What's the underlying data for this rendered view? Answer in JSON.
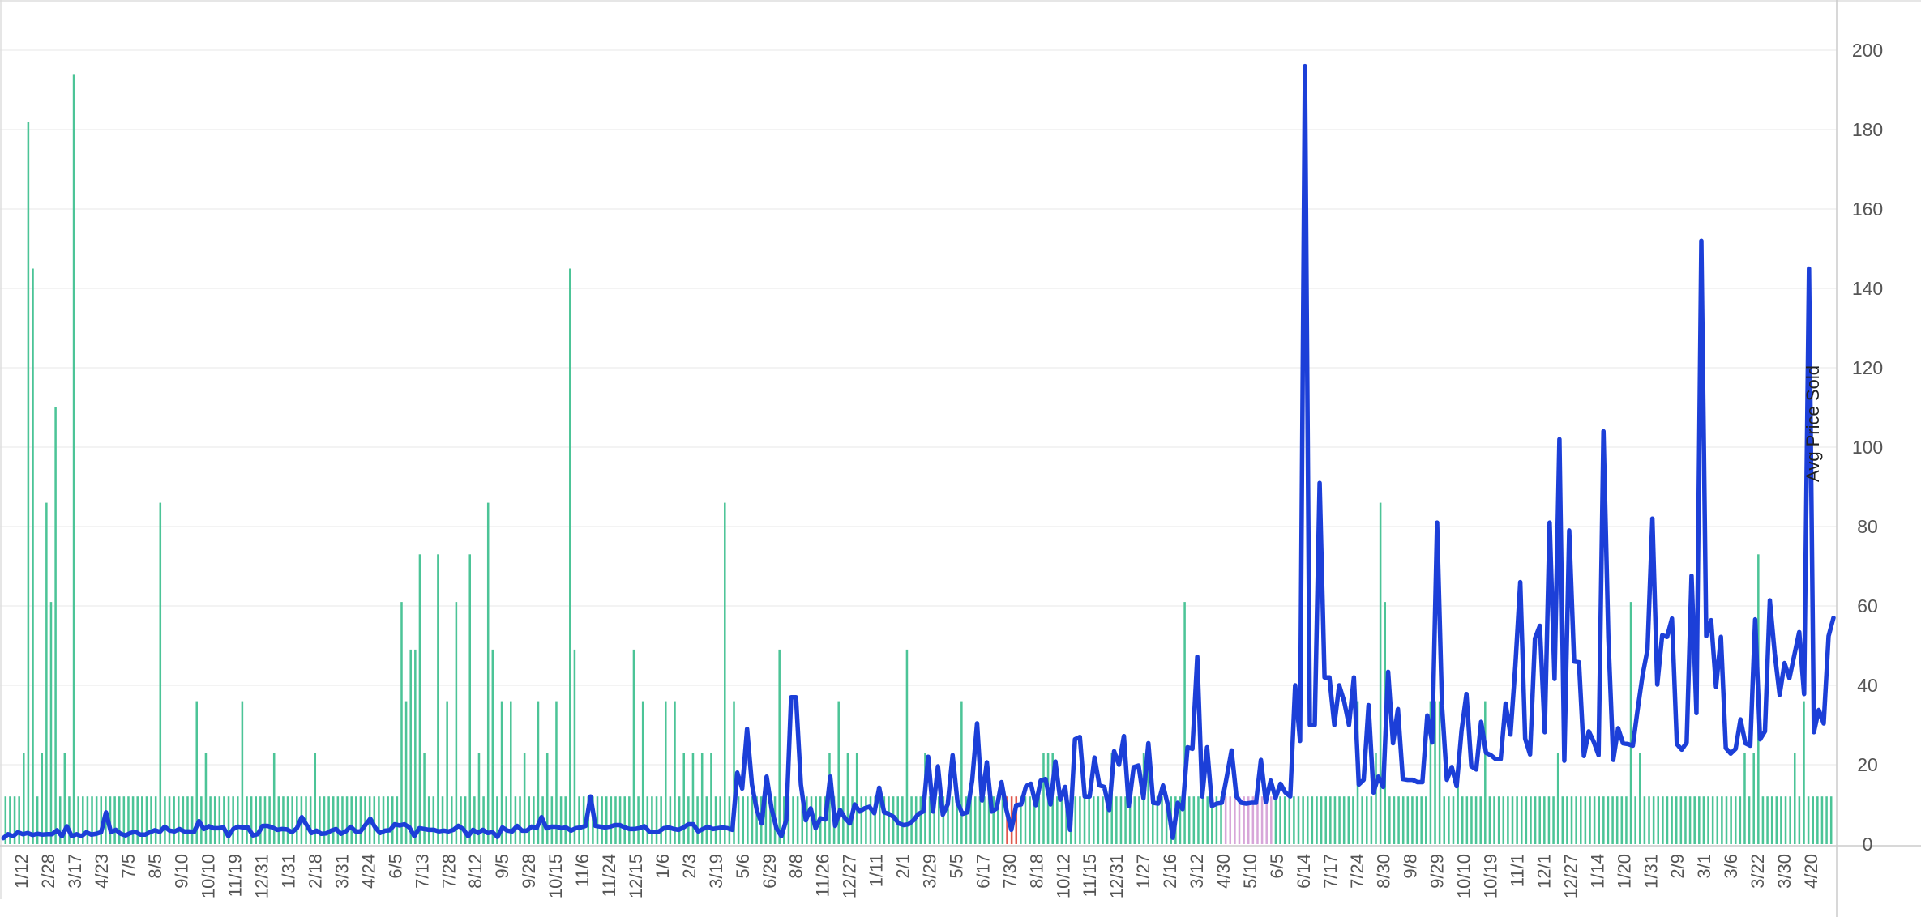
{
  "chart_data": {
    "type": "bar+line",
    "title": "",
    "xlabel": "",
    "ylabel": "Avg Price Sold",
    "y_axis_position": "right",
    "ylim": [
      0,
      205
    ],
    "y_ticks": [
      0,
      20,
      40,
      60,
      80,
      100,
      120,
      140,
      160,
      180,
      200
    ],
    "grid": "horizontal",
    "x_tick_labels": [
      "1/12",
      "2/28",
      "3/17",
      "4/23",
      "7/5",
      "8/5",
      "9/10",
      "10/10",
      "11/19",
      "12/31",
      "1/31",
      "2/18",
      "3/31",
      "4/24",
      "6/5",
      "7/13",
      "7/28",
      "8/12",
      "9/5",
      "9/28",
      "10/15",
      "11/6",
      "11/24",
      "12/15",
      "1/6",
      "2/3",
      "3/19",
      "5/6",
      "6/29",
      "8/8",
      "11/26",
      "12/27",
      "1/11",
      "2/1",
      "3/29",
      "5/5",
      "6/17",
      "7/30",
      "8/18",
      "10/12",
      "11/15",
      "12/31",
      "1/27",
      "2/16",
      "3/12",
      "4/30",
      "5/10",
      "6/5",
      "6/14",
      "7/17",
      "7/24",
      "8/30",
      "9/8",
      "9/29",
      "10/10",
      "10/19",
      "11/1",
      "12/1",
      "12/27",
      "1/14",
      "1/20",
      "1/31",
      "2/9",
      "3/1",
      "3/6",
      "3/22",
      "3/30",
      "4/20"
    ],
    "bar_colors": {
      "default": "#4cc497",
      "highlight_red": "#e05a4e",
      "highlight_purple": "#d7a6d9"
    },
    "line_color": "#1c3fd8",
    "bar_values": [
      12,
      12,
      12,
      12,
      23,
      182,
      145,
      12,
      23,
      86,
      61,
      110,
      12,
      23,
      12,
      194,
      12,
      12,
      12,
      12,
      12,
      12,
      12,
      12,
      12,
      12,
      12,
      12,
      12,
      12,
      12,
      12,
      12,
      12,
      86,
      12,
      12,
      12,
      12,
      12,
      12,
      12,
      36,
      12,
      23,
      12,
      12,
      12,
      12,
      12,
      12,
      12,
      36,
      12,
      12,
      12,
      12,
      12,
      12,
      23,
      12,
      12,
      12,
      12,
      12,
      12,
      12,
      12,
      23,
      12,
      12,
      12,
      12,
      12,
      12,
      12,
      12,
      12,
      12,
      12,
      12,
      12,
      12,
      12,
      12,
      12,
      12,
      61,
      36,
      49,
      49,
      73,
      23,
      12,
      12,
      73,
      12,
      36,
      12,
      61,
      12,
      12,
      73,
      12,
      23,
      12,
      86,
      49,
      12,
      36,
      12,
      36,
      12,
      12,
      23,
      12,
      12,
      36,
      12,
      23,
      12,
      36,
      12,
      12,
      145,
      49,
      12,
      12,
      12,
      12,
      12,
      12,
      12,
      12,
      12,
      12,
      12,
      12,
      49,
      12,
      36,
      12,
      12,
      12,
      12,
      36,
      12,
      36,
      12,
      23,
      12,
      23,
      12,
      23,
      12,
      23,
      12,
      12,
      86,
      12,
      36,
      12,
      12,
      12,
      12,
      12,
      12,
      12,
      12,
      12,
      49,
      12,
      12,
      12,
      12,
      12,
      12,
      12,
      12,
      12,
      12,
      23,
      12,
      36,
      12,
      23,
      12,
      23,
      12,
      12,
      12,
      12,
      12,
      12,
      12,
      12,
      12,
      12,
      49,
      12,
      12,
      12,
      23,
      12,
      12,
      12,
      12,
      12,
      12,
      12,
      36,
      12,
      12,
      12,
      12,
      12,
      12,
      12,
      12,
      12,
      12,
      12,
      12,
      12,
      12,
      12,
      12,
      12,
      23,
      23,
      23,
      12,
      12,
      12,
      12,
      12,
      12,
      12,
      12,
      12,
      12,
      12,
      12,
      23,
      12,
      12,
      12,
      12,
      12,
      12,
      23,
      23,
      12,
      12,
      12,
      12,
      12,
      12,
      12,
      61,
      12,
      12,
      12,
      12,
      12,
      12,
      12,
      12,
      12,
      12,
      12,
      12,
      12,
      12,
      12,
      12,
      12,
      12,
      12,
      12,
      12,
      12,
      12,
      12,
      12,
      12,
      12,
      12,
      12,
      12,
      12,
      12,
      12,
      12,
      12,
      12,
      12,
      36,
      12,
      12,
      12,
      23,
      86,
      61,
      12,
      12,
      12,
      12,
      12,
      12,
      12,
      12,
      12,
      36,
      36,
      36,
      12,
      12,
      12,
      23,
      12,
      12,
      12,
      12,
      12,
      36,
      12,
      12,
      12,
      12,
      12,
      12,
      12,
      12,
      12,
      12,
      12,
      12,
      12,
      12,
      12,
      23,
      12,
      12,
      12,
      12,
      12,
      12,
      12,
      12,
      12,
      12,
      12,
      12,
      12,
      12,
      12,
      61,
      12,
      23,
      12,
      12,
      12,
      12,
      12,
      12,
      12,
      12,
      12,
      12,
      12,
      12,
      12,
      12,
      12,
      12,
      12,
      12,
      12,
      12,
      12,
      12,
      23,
      12,
      23,
      73,
      12,
      12,
      12,
      12,
      12,
      12,
      12,
      23,
      12,
      36,
      12,
      12,
      12,
      12,
      12,
      12
    ],
    "red_bar_indices": [
      220,
      221,
      222
    ],
    "purple_bar_indices": [
      268,
      269,
      270,
      271,
      272,
      273,
      274,
      275,
      276,
      277,
      278
    ],
    "line_values": [
      1.5,
      2.5,
      2,
      3,
      2.5,
      2.8,
      2.3,
      2.6,
      2.4,
      2.5,
      2.5,
      3.5,
      2,
      4.5,
      2,
      2.5,
      2,
      3,
      2.4,
      2.6,
      3,
      8,
      3,
      3.6,
      2.6,
      2.2,
      2.8,
      3.1,
      2.4,
      2.4,
      3,
      3.5,
      3.1,
      4.4,
      3.4,
      3.2,
      3.8,
      3.2,
      3.2,
      3.1,
      5.8,
      3.8,
      4.5,
      4,
      4,
      4.2,
      2,
      3.8,
      4.4,
      4.2,
      4.2,
      2.2,
      2.5,
      4.6,
      4.6,
      4.2,
      3.6,
      3.8,
      3.7,
      3,
      4,
      6.8,
      4.8,
      2.8,
      3.4,
      2.6,
      2.7,
      3.4,
      3.8,
      2.6,
      3.2,
      4.4,
      3.2,
      3.2,
      4.8,
      6.4,
      4.2,
      2.8,
      3.4,
      3.5,
      5,
      4.7,
      5,
      4.2,
      2,
      4,
      3.8,
      3.6,
      3.6,
      3.2,
      3.4,
      3.2,
      3.6,
      4.6,
      3.8,
      2,
      3.6,
      2.8,
      3.6,
      2.8,
      3,
      1.8,
      4.2,
      3.4,
      3.2,
      4.6,
      3.4,
      3.4,
      4.4,
      4,
      6.8,
      4,
      4.4,
      4.4,
      4,
      4.2,
      3.4,
      4,
      4.2,
      4.6,
      12,
      4.6,
      4.4,
      4.2,
      4.4,
      4.8,
      4.8,
      4.2,
      3.8,
      3.8,
      4,
      4.5,
      3.2,
      3,
      3.2,
      4,
      4.2,
      3.8,
      3.6,
      4.2,
      5,
      5,
      3.2,
      3.8,
      4.4,
      3.8,
      4,
      4.2,
      4,
      3.6,
      18,
      14,
      29,
      15,
      8.5,
      5.2,
      17,
      9,
      4,
      2,
      6,
      37,
      37,
      15,
      6,
      9,
      4,
      6.5,
      6.2,
      17,
      4.6,
      8.6,
      6.6,
      5.2,
      10,
      8.2,
      9,
      9.4,
      7.8,
      14.2,
      8,
      7.6,
      6.8,
      5.2,
      4.8,
      5,
      6,
      7.6,
      8.2,
      22,
      8.2,
      19.6,
      7.4,
      10,
      22.4,
      10.6,
      7.6,
      8,
      16,
      30.4,
      11,
      20.6,
      8.2,
      9,
      15.6,
      8.6,
      3.6,
      9.8,
      10,
      14.6,
      15.2,
      9.8,
      16,
      16.4,
      10,
      20.8,
      11.2,
      14.4,
      3.6,
      26.4,
      27,
      12,
      12,
      21.8,
      14.8,
      14.4,
      8.6,
      23.4,
      20,
      27.2,
      9.6,
      19.4,
      19.8,
      11.6,
      25.4,
      10.4,
      10.2,
      14.8,
      9.8,
      1.6,
      10.4,
      8.8,
      24.4,
      24,
      47.2,
      12,
      24.4,
      9.6,
      10.2,
      10.4,
      16.8,
      23.6,
      12,
      10.4,
      10.2,
      10.4,
      10.4,
      21.2,
      10.6,
      16,
      11.6,
      15.2,
      13,
      12,
      40,
      26,
      196,
      30,
      30,
      91,
      42,
      42,
      30,
      40,
      36,
      30,
      42,
      15,
      16.2,
      35,
      13,
      17,
      14.4,
      43.4,
      25.4,
      34,
      16.4,
      16.2,
      16.2,
      15.6,
      15.6,
      32.4,
      25.6,
      81,
      35,
      16.2,
      19.4,
      14.6,
      28.6,
      37.8,
      19.6,
      18.8,
      30.8,
      23,
      22.4,
      21.4,
      21.4,
      35.4,
      27.6,
      45,
      66,
      26.6,
      22.6,
      51.8,
      55,
      28.2,
      81,
      41.6,
      102,
      21,
      79,
      46,
      45.8,
      22.2,
      28.4,
      25.8,
      22.4,
      104,
      52,
      21.2,
      29.2,
      25.4,
      25.2,
      24.8,
      34,
      42.6,
      49,
      82,
      40.2,
      52.6,
      52.2,
      56.8,
      25.2,
      23.8,
      25.6,
      67.6,
      33,
      152,
      52.4,
      56.4,
      39.6,
      52.2,
      24.2,
      22.8,
      24,
      31.4,
      25.4,
      24.8,
      56.6,
      26.4,
      28.4,
      61.4,
      48,
      37.6,
      45.6,
      41.8,
      47.6,
      53.4,
      37.8,
      145,
      28.2,
      33.8,
      30.4,
      52.4,
      57
    ]
  }
}
